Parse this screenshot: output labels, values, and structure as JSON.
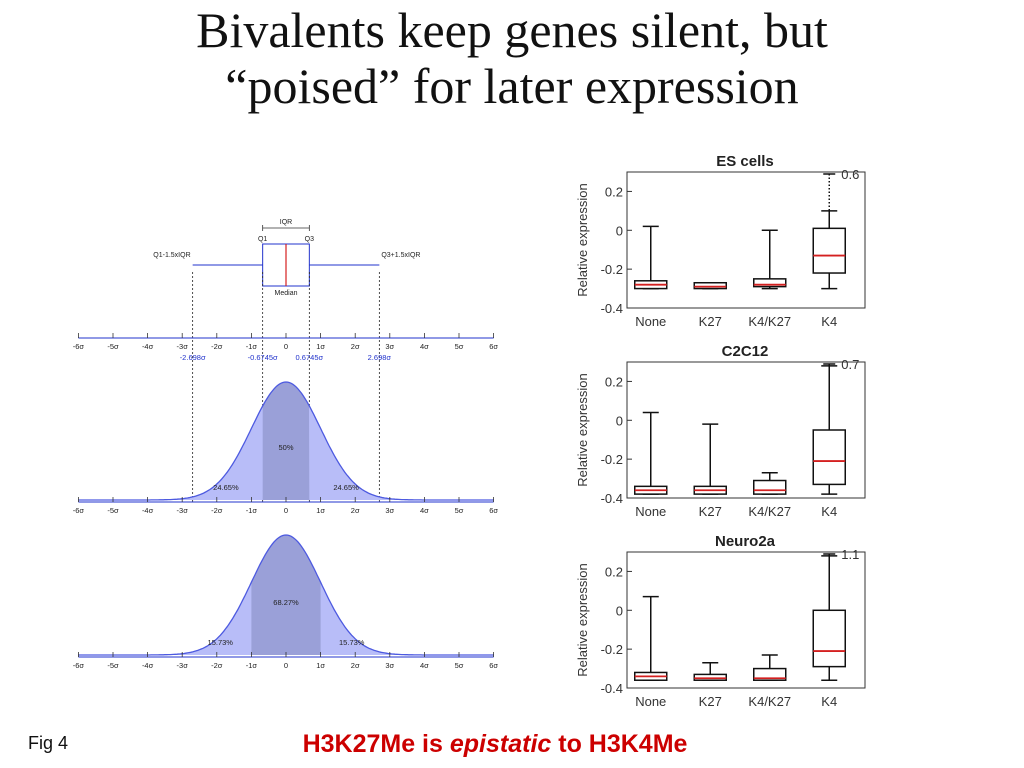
{
  "slide": {
    "title_line1": "Bivalents keep genes silent, but",
    "title_line2": "“poised” for later expression",
    "fig_label": "Fig 4",
    "caption_part1": "H3K27Me is ",
    "caption_italic": "epistatic",
    "caption_part2": " to H3K4Me"
  },
  "colors": {
    "fill_light": "#b8bdf8",
    "fill_dark": "#9aa0d8",
    "curve": "#4d5ae0",
    "axis_blue": "#2233cc",
    "median_red": "#d42020"
  },
  "schematic": {
    "boxplot_labels": {
      "iqr": "IQR",
      "q1": "Q1",
      "q3": "Q3",
      "median": "Median",
      "lower_whisker": "Q1-1.5xIQR",
      "upper_whisker": "Q3+1.5xIQR"
    },
    "sigma_ticks": [
      "-6σ",
      "-5σ",
      "-4σ",
      "-3σ",
      "-2σ",
      "-1σ",
      "0",
      "1σ",
      "2σ",
      "3σ",
      "4σ",
      "5σ",
      "6σ"
    ],
    "marker_values": [
      "-2.698σ",
      "-0.6745σ",
      "0.6745σ",
      "2.698σ"
    ],
    "panel1_pcts": {
      "left": "24.65%",
      "center": "50%",
      "right": "24.65%"
    },
    "panel2_pcts": {
      "left": "15.73%",
      "center": "68.27%",
      "right": "15.73%"
    }
  },
  "chart_data": [
    {
      "type": "box",
      "title": "ES cells",
      "ylabel": "Relative expression",
      "ylim": [
        -0.4,
        0.3
      ],
      "yticks": [
        "0.2",
        "0",
        "-0.2",
        "-0.4"
      ],
      "categories": [
        "None",
        "K27",
        "K4/K27",
        "K4"
      ],
      "boxes": [
        {
          "whisker_low": -0.3,
          "q1": -0.3,
          "median": -0.28,
          "q3": -0.26,
          "whisker_high": 0.02
        },
        {
          "whisker_low": -0.3,
          "q1": -0.3,
          "median": -0.29,
          "q3": -0.27,
          "whisker_high": -0.27
        },
        {
          "whisker_low": -0.3,
          "q1": -0.29,
          "median": -0.28,
          "q3": -0.25,
          "whisker_high": 0.0
        },
        {
          "whisker_low": -0.3,
          "q1": -0.22,
          "median": -0.13,
          "q3": 0.01,
          "whisker_high": 0.1
        }
      ],
      "annotation": "0.6"
    },
    {
      "type": "box",
      "title": "C2C12",
      "ylabel": "Relative expression",
      "ylim": [
        -0.4,
        0.3
      ],
      "yticks": [
        "0.2",
        "0",
        "-0.2",
        "-0.4"
      ],
      "categories": [
        "None",
        "K27",
        "K4/K27",
        "K4"
      ],
      "boxes": [
        {
          "whisker_low": -0.38,
          "q1": -0.38,
          "median": -0.36,
          "q3": -0.34,
          "whisker_high": 0.04
        },
        {
          "whisker_low": -0.38,
          "q1": -0.38,
          "median": -0.36,
          "q3": -0.34,
          "whisker_high": -0.02
        },
        {
          "whisker_low": -0.38,
          "q1": -0.38,
          "median": -0.36,
          "q3": -0.31,
          "whisker_high": -0.27
        },
        {
          "whisker_low": -0.38,
          "q1": -0.33,
          "median": -0.21,
          "q3": -0.05,
          "whisker_high": 0.28
        }
      ],
      "annotation": "0.7"
    },
    {
      "type": "box",
      "title": "Neuro2a",
      "ylabel": "Relative expression",
      "ylim": [
        -0.4,
        0.3
      ],
      "yticks": [
        "0.2",
        "0",
        "-0.2",
        "-0.4"
      ],
      "categories": [
        "None",
        "K27",
        "K4/K27",
        "K4"
      ],
      "boxes": [
        {
          "whisker_low": -0.36,
          "q1": -0.36,
          "median": -0.34,
          "q3": -0.32,
          "whisker_high": 0.07
        },
        {
          "whisker_low": -0.36,
          "q1": -0.36,
          "median": -0.35,
          "q3": -0.33,
          "whisker_high": -0.27
        },
        {
          "whisker_low": -0.36,
          "q1": -0.36,
          "median": -0.35,
          "q3": -0.3,
          "whisker_high": -0.23
        },
        {
          "whisker_low": -0.36,
          "q1": -0.29,
          "median": -0.21,
          "q3": 0.0,
          "whisker_high": 0.28
        }
      ],
      "annotation": "1.1"
    }
  ]
}
